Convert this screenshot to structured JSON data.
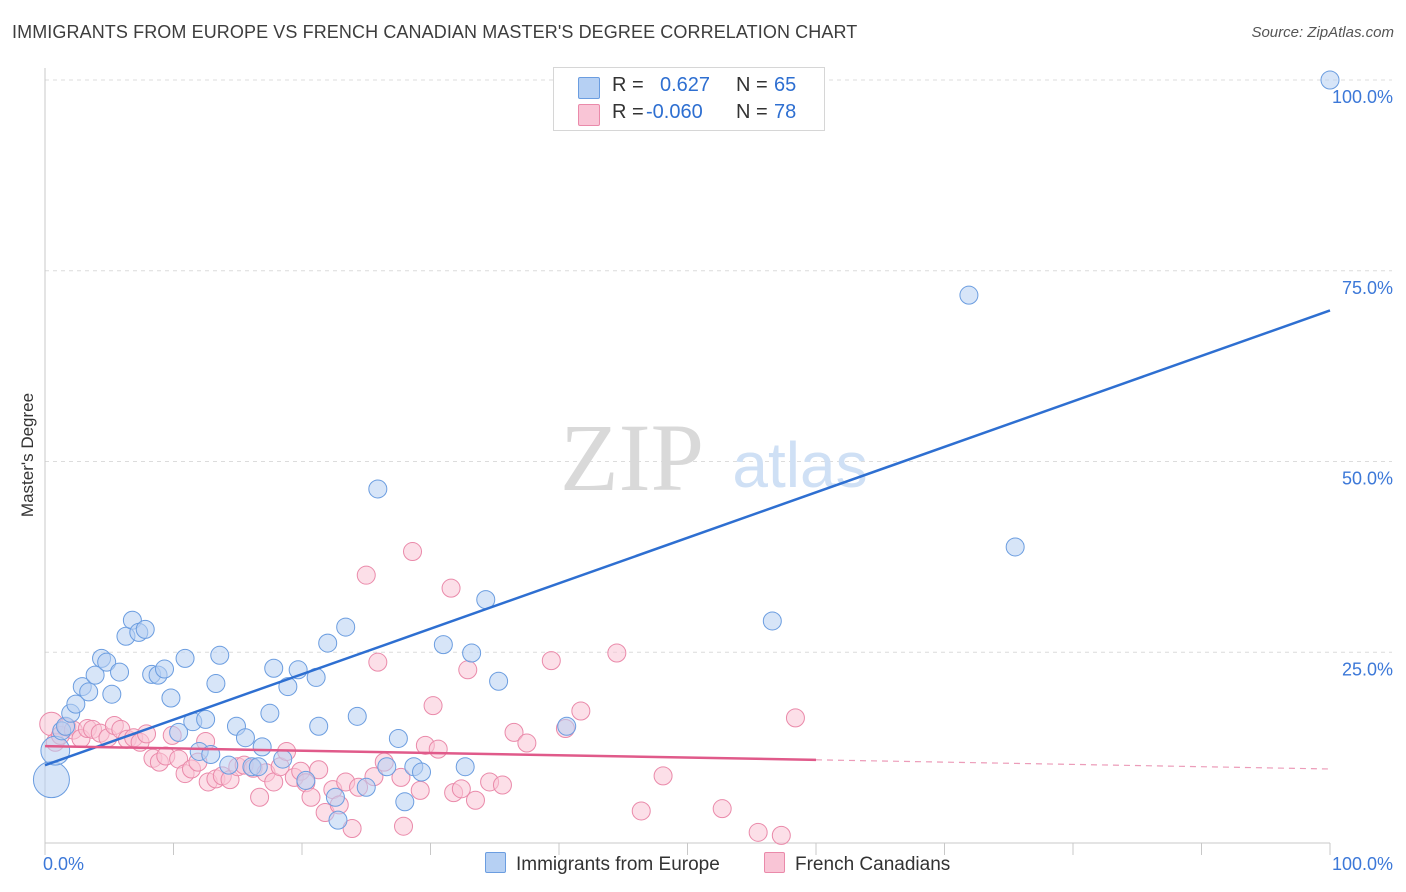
{
  "title": "IMMIGRANTS FROM EUROPE VS FRENCH CANADIAN MASTER'S DEGREE CORRELATION CHART",
  "source": "Source: ZipAtlas.com",
  "watermark": {
    "zip": "ZIP",
    "atlas": "atlas"
  },
  "legend": {
    "r_label": "R =",
    "n_label": "N =",
    "series": [
      {
        "name": "Immigrants from Europe",
        "r": "0.627",
        "n": "65",
        "fill": "#b6d0f3",
        "stroke": "#6b9de0"
      },
      {
        "name": "French Canadians",
        "r": "-0.060",
        "n": "78",
        "fill": "#f9c5d6",
        "stroke": "#ea8aaa"
      }
    ]
  },
  "chart_data": {
    "type": "scatter",
    "title": "IMMIGRANTS FROM EUROPE VS FRENCH CANADIAN MASTER'S DEGREE CORRELATION CHART",
    "xlabel": "",
    "ylabel": "Master's Degree",
    "xlim": [
      0,
      100
    ],
    "ylim": [
      0,
      100
    ],
    "x_tick_labels": [
      "0.0%",
      "100.0%"
    ],
    "y_tick_labels": [
      "100.0%",
      "75.0%",
      "50.0%",
      "25.0%"
    ],
    "y_ticks": [
      100,
      75,
      50,
      25
    ],
    "grid": true,
    "legend_position": "top-center",
    "colors": {
      "blue": "#2e6fd1",
      "pink": "#e05a8a",
      "axis_label": "#3c78d8"
    },
    "series": [
      {
        "name": "Immigrants from Europe",
        "color": "#6b9de0",
        "fill": "#b6d0f3",
        "trend": {
          "x": [
            0,
            100
          ],
          "y": [
            10.2,
            69.8
          ]
        },
        "points": [
          {
            "x": 0.5,
            "y": 8.3,
            "s": 2
          },
          {
            "x": 0.8,
            "y": 12.1,
            "s": 1.6
          },
          {
            "x": 1.3,
            "y": 14.7
          },
          {
            "x": 1.6,
            "y": 15.3
          },
          {
            "x": 2.0,
            "y": 17.0
          },
          {
            "x": 2.4,
            "y": 18.2
          },
          {
            "x": 2.9,
            "y": 20.5
          },
          {
            "x": 3.4,
            "y": 19.8
          },
          {
            "x": 3.9,
            "y": 22.0
          },
          {
            "x": 4.4,
            "y": 24.2
          },
          {
            "x": 4.8,
            "y": 23.7
          },
          {
            "x": 5.2,
            "y": 19.5
          },
          {
            "x": 5.8,
            "y": 22.4
          },
          {
            "x": 6.3,
            "y": 27.1
          },
          {
            "x": 6.8,
            "y": 29.2
          },
          {
            "x": 7.3,
            "y": 27.6
          },
          {
            "x": 7.8,
            "y": 28.0
          },
          {
            "x": 8.3,
            "y": 22.1
          },
          {
            "x": 8.8,
            "y": 22.0
          },
          {
            "x": 9.3,
            "y": 22.8
          },
          {
            "x": 9.8,
            "y": 19.0
          },
          {
            "x": 10.4,
            "y": 14.5
          },
          {
            "x": 10.9,
            "y": 24.2
          },
          {
            "x": 11.5,
            "y": 15.9
          },
          {
            "x": 12.0,
            "y": 12.0
          },
          {
            "x": 12.5,
            "y": 16.2
          },
          {
            "x": 12.9,
            "y": 11.6
          },
          {
            "x": 13.3,
            "y": 20.9
          },
          {
            "x": 13.6,
            "y": 24.6
          },
          {
            "x": 14.3,
            "y": 10.2
          },
          {
            "x": 14.9,
            "y": 15.3
          },
          {
            "x": 15.6,
            "y": 13.8
          },
          {
            "x": 16.1,
            "y": 10.0
          },
          {
            "x": 16.6,
            "y": 10.0
          },
          {
            "x": 16.9,
            "y": 12.6
          },
          {
            "x": 17.5,
            "y": 17.0
          },
          {
            "x": 17.8,
            "y": 22.9
          },
          {
            "x": 18.5,
            "y": 11.0
          },
          {
            "x": 18.9,
            "y": 20.5
          },
          {
            "x": 19.7,
            "y": 22.7
          },
          {
            "x": 20.3,
            "y": 8.2
          },
          {
            "x": 21.1,
            "y": 21.7
          },
          {
            "x": 21.3,
            "y": 15.3
          },
          {
            "x": 22.0,
            "y": 26.2
          },
          {
            "x": 22.6,
            "y": 6.0
          },
          {
            "x": 22.8,
            "y": 3.0
          },
          {
            "x": 23.4,
            "y": 28.3
          },
          {
            "x": 24.3,
            "y": 16.6
          },
          {
            "x": 25.0,
            "y": 7.3
          },
          {
            "x": 25.9,
            "y": 46.4
          },
          {
            "x": 26.6,
            "y": 10.0
          },
          {
            "x": 27.5,
            "y": 13.7
          },
          {
            "x": 28.0,
            "y": 5.4
          },
          {
            "x": 28.7,
            "y": 10.0
          },
          {
            "x": 29.3,
            "y": 9.3
          },
          {
            "x": 31.0,
            "y": 26.0
          },
          {
            "x": 32.7,
            "y": 10.0
          },
          {
            "x": 33.2,
            "y": 24.9
          },
          {
            "x": 34.3,
            "y": 31.9
          },
          {
            "x": 35.3,
            "y": 21.2
          },
          {
            "x": 40.6,
            "y": 15.3
          },
          {
            "x": 56.6,
            "y": 29.1
          },
          {
            "x": 71.9,
            "y": 71.8
          },
          {
            "x": 75.5,
            "y": 38.8
          },
          {
            "x": 100.0,
            "y": 100.0
          }
        ]
      },
      {
        "name": "French Canadians",
        "color": "#ea8aaa",
        "fill": "#f9c5d6",
        "trend": {
          "x": [
            0,
            60
          ],
          "y": [
            12.7,
            10.9
          ]
        },
        "trend_dashed": {
          "x": [
            60,
            100
          ],
          "y": [
            10.9,
            9.7
          ]
        },
        "points": [
          {
            "x": 0.5,
            "y": 15.6,
            "s": 1.3
          },
          {
            "x": 0.8,
            "y": 13.2
          },
          {
            "x": 1.2,
            "y": 14.1
          },
          {
            "x": 1.7,
            "y": 15.2
          },
          {
            "x": 2.2,
            "y": 14.8
          },
          {
            "x": 2.8,
            "y": 13.7
          },
          {
            "x": 3.3,
            "y": 15.0
          },
          {
            "x": 3.7,
            "y": 14.9
          },
          {
            "x": 4.3,
            "y": 14.4
          },
          {
            "x": 4.9,
            "y": 13.8
          },
          {
            "x": 5.4,
            "y": 15.4
          },
          {
            "x": 5.9,
            "y": 14.9
          },
          {
            "x": 6.4,
            "y": 13.6
          },
          {
            "x": 6.9,
            "y": 13.8
          },
          {
            "x": 7.4,
            "y": 13.2
          },
          {
            "x": 7.9,
            "y": 14.3
          },
          {
            "x": 8.4,
            "y": 11.1
          },
          {
            "x": 8.9,
            "y": 10.6
          },
          {
            "x": 9.4,
            "y": 11.4
          },
          {
            "x": 9.9,
            "y": 14.1
          },
          {
            "x": 10.4,
            "y": 11.0
          },
          {
            "x": 10.9,
            "y": 9.1
          },
          {
            "x": 11.4,
            "y": 9.7
          },
          {
            "x": 11.9,
            "y": 10.6
          },
          {
            "x": 12.5,
            "y": 13.3
          },
          {
            "x": 12.7,
            "y": 8.0
          },
          {
            "x": 13.3,
            "y": 8.4
          },
          {
            "x": 13.8,
            "y": 8.8
          },
          {
            "x": 14.4,
            "y": 8.3
          },
          {
            "x": 15.0,
            "y": 10.0
          },
          {
            "x": 15.5,
            "y": 10.2
          },
          {
            "x": 16.2,
            "y": 9.8
          },
          {
            "x": 16.7,
            "y": 6.0
          },
          {
            "x": 17.2,
            "y": 9.2
          },
          {
            "x": 17.8,
            "y": 8.0
          },
          {
            "x": 18.3,
            "y": 10.0
          },
          {
            "x": 18.8,
            "y": 12.0
          },
          {
            "x": 19.4,
            "y": 8.6
          },
          {
            "x": 19.9,
            "y": 9.4
          },
          {
            "x": 20.3,
            "y": 7.9
          },
          {
            "x": 20.7,
            "y": 6.0
          },
          {
            "x": 21.3,
            "y": 9.6
          },
          {
            "x": 21.8,
            "y": 4.0
          },
          {
            "x": 22.4,
            "y": 7.0
          },
          {
            "x": 22.9,
            "y": 5.0
          },
          {
            "x": 23.4,
            "y": 8.0
          },
          {
            "x": 23.9,
            "y": 1.9
          },
          {
            "x": 24.4,
            "y": 7.3
          },
          {
            "x": 25.0,
            "y": 35.1
          },
          {
            "x": 25.6,
            "y": 8.7
          },
          {
            "x": 25.9,
            "y": 23.7
          },
          {
            "x": 26.4,
            "y": 10.6
          },
          {
            "x": 27.7,
            "y": 8.6
          },
          {
            "x": 27.9,
            "y": 2.2
          },
          {
            "x": 28.6,
            "y": 38.2
          },
          {
            "x": 29.2,
            "y": 6.9
          },
          {
            "x": 29.6,
            "y": 12.8
          },
          {
            "x": 30.2,
            "y": 18.0
          },
          {
            "x": 30.6,
            "y": 12.3
          },
          {
            "x": 31.6,
            "y": 33.4
          },
          {
            "x": 31.8,
            "y": 6.6
          },
          {
            "x": 32.4,
            "y": 7.1
          },
          {
            "x": 32.9,
            "y": 22.7
          },
          {
            "x": 33.5,
            "y": 5.6
          },
          {
            "x": 34.6,
            "y": 8.0
          },
          {
            "x": 35.6,
            "y": 7.6
          },
          {
            "x": 36.5,
            "y": 14.5
          },
          {
            "x": 37.5,
            "y": 13.1
          },
          {
            "x": 39.4,
            "y": 23.9
          },
          {
            "x": 40.5,
            "y": 15.0
          },
          {
            "x": 41.7,
            "y": 17.3
          },
          {
            "x": 44.5,
            "y": 24.9
          },
          {
            "x": 46.4,
            "y": 4.2
          },
          {
            "x": 48.1,
            "y": 8.8
          },
          {
            "x": 52.7,
            "y": 4.5
          },
          {
            "x": 55.5,
            "y": 1.4
          },
          {
            "x": 57.3,
            "y": 1.0
          },
          {
            "x": 58.4,
            "y": 16.4
          }
        ]
      }
    ]
  }
}
